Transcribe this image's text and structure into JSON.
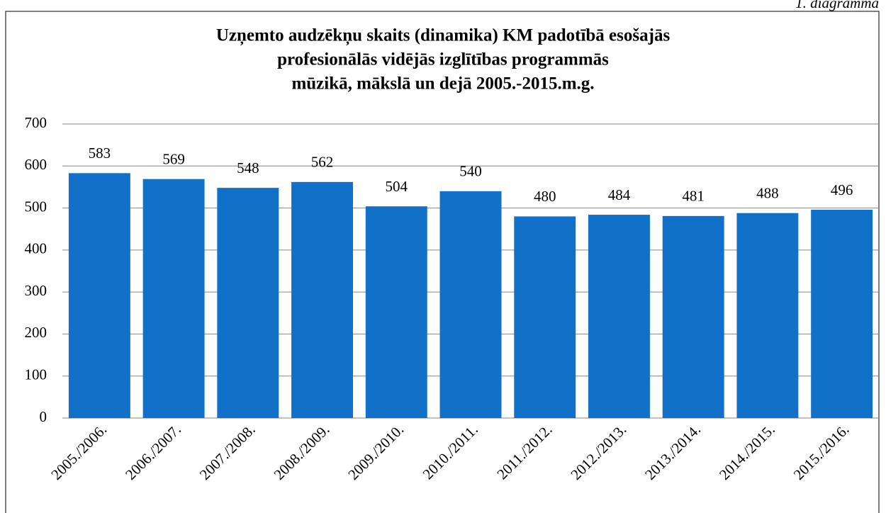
{
  "chart_data": {
    "type": "bar",
    "annotation": "1. diagramma",
    "title": [
      "Uzņemto audzēkņu skaits (dinamika) KM padotībā esošajās",
      "profesionālās vidējās izglītības programmās",
      "mūzikā, mākslā un dejā 2005.-2015.m.g."
    ],
    "categories": [
      "2005./2006.",
      "2006./2007.",
      "2007./2008.",
      "2008./2009.",
      "2009./2010.",
      "2010./2011.",
      "2011./2012.",
      "2012./2013.",
      "2013./2014.",
      "2014./2015.",
      "2015./2016."
    ],
    "values": [
      583,
      569,
      548,
      562,
      504,
      540,
      480,
      484,
      481,
      488,
      496
    ],
    "color": "#1170c8",
    "ylim": [
      0,
      700
    ],
    "yticks": [
      0,
      100,
      200,
      300,
      400,
      500,
      600,
      700
    ],
    "grid": true
  }
}
